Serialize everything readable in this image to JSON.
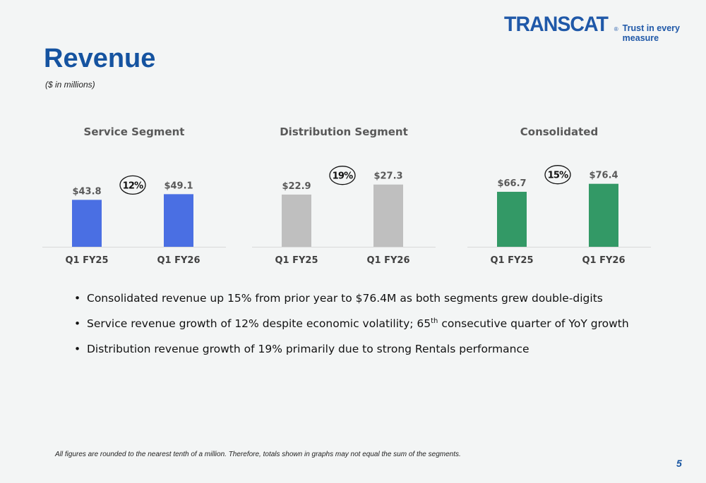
{
  "header": {
    "logo_text": "TRANSCAT",
    "logo_reg": "®",
    "tagline": "Trust in every measure",
    "title": "Revenue",
    "subtitle": "($ in millions)"
  },
  "colors": {
    "service": "#4a6fe3",
    "distribution": "#bfbfbf",
    "consolidated": "#339966",
    "title": "#1553a0"
  },
  "chart_data": [
    {
      "type": "bar",
      "title": "Service Segment",
      "categories": [
        "Q1 FY25",
        "Q1 FY26"
      ],
      "values": [
        43.8,
        49.1
      ],
      "value_labels": [
        "$43.8",
        "$49.1"
      ],
      "growth_label": "12%",
      "color": "#4a6fe3",
      "ylim": [
        0,
        100
      ]
    },
    {
      "type": "bar",
      "title": "Distribution Segment",
      "categories": [
        "Q1 FY25",
        "Q1 FY26"
      ],
      "values": [
        22.9,
        27.3
      ],
      "value_labels": [
        "$22.9",
        "$27.3"
      ],
      "growth_label": "19%",
      "color": "#bfbfbf",
      "ylim": [
        0,
        47
      ]
    },
    {
      "type": "bar",
      "title": "Consolidated",
      "categories": [
        "Q1 FY25",
        "Q1 FY26"
      ],
      "values": [
        66.7,
        76.4
      ],
      "value_labels": [
        "$66.7",
        "$76.4"
      ],
      "growth_label": "15%",
      "color": "#339966",
      "ylim": [
        0,
        130
      ]
    }
  ],
  "bullets": [
    {
      "text": "Consolidated revenue up 15% from prior year to $76.4M as both segments grew double-digits"
    },
    {
      "before": "Service revenue growth of 12% despite economic volatility; 65",
      "sup": "th",
      "after": " consecutive quarter of YoY growth"
    },
    {
      "text": "Distribution revenue growth of 19% primarily due to strong Rentals performance"
    }
  ],
  "footnote": "All figures are rounded to the nearest tenth of a million. Therefore, totals shown in graphs may not equal the sum of the segments.",
  "page_number": "5"
}
